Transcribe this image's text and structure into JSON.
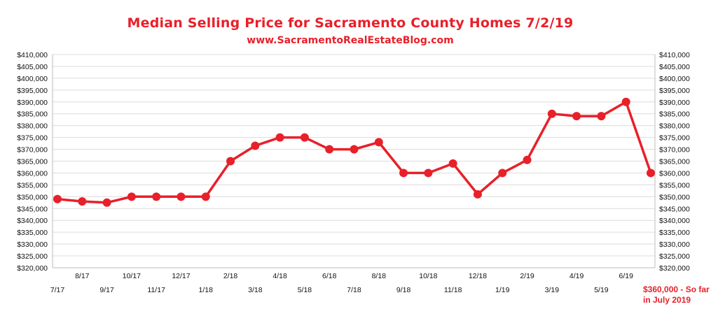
{
  "title": "Median Selling Price for Sacramento County Homes 7/2/19",
  "subtitle": "www.SacramentoRealEstateBlog.com",
  "note": [
    "$360,000 - So far",
    "in July 2019"
  ],
  "colors": {
    "line": "#e8202a",
    "title": "#e8202a",
    "grid": "#dcdcdc"
  },
  "chart_data": {
    "type": "line",
    "title": "Median Selling Price for Sacramento County Homes 7/2/19",
    "categories": [
      "7/17",
      "8/17",
      "9/17",
      "10/17",
      "11/17",
      "12/17",
      "1/18",
      "2/18",
      "3/18",
      "4/18",
      "5/18",
      "6/18",
      "7/18",
      "8/18",
      "9/18",
      "10/18",
      "11/18",
      "12/18",
      "1/19",
      "2/19",
      "3/19",
      "4/19",
      "5/19",
      "6/19",
      "7/19"
    ],
    "values": [
      349000,
      348000,
      347500,
      350000,
      350000,
      350000,
      350000,
      365000,
      371500,
      375000,
      375000,
      370000,
      370000,
      373000,
      360000,
      360000,
      364000,
      351000,
      360000,
      365500,
      385000,
      384000,
      384000,
      390000,
      360000
    ],
    "ylim": [
      320000,
      410000
    ],
    "yticks": [
      320000,
      325000,
      330000,
      335000,
      340000,
      345000,
      350000,
      355000,
      360000,
      365000,
      370000,
      375000,
      380000,
      385000,
      390000,
      395000,
      400000,
      405000,
      410000
    ],
    "ytick_labels": [
      "$320,000",
      "$325,000",
      "$330,000",
      "$335,000",
      "$340,000",
      "$345,000",
      "$350,000",
      "$355,000",
      "$360,000",
      "$365,000",
      "$370,000",
      "$375,000",
      "$380,000",
      "$385,000",
      "$390,000",
      "$395,000",
      "$400,000",
      "$405,000",
      "$410,000"
    ],
    "xtick_labels_upper": [
      "8/17",
      "10/17",
      "12/17",
      "2/18",
      "4/18",
      "6/18",
      "8/18",
      "10/18",
      "12/18",
      "2/19",
      "4/19",
      "6/19"
    ],
    "xtick_labels_lower": [
      "7/17",
      "9/17",
      "11/17",
      "1/18",
      "3/18",
      "5/18",
      "7/18",
      "9/18",
      "11/18",
      "1/19",
      "3/19",
      "5/19"
    ],
    "grid": true,
    "axes": "left and right",
    "legend": "none"
  }
}
